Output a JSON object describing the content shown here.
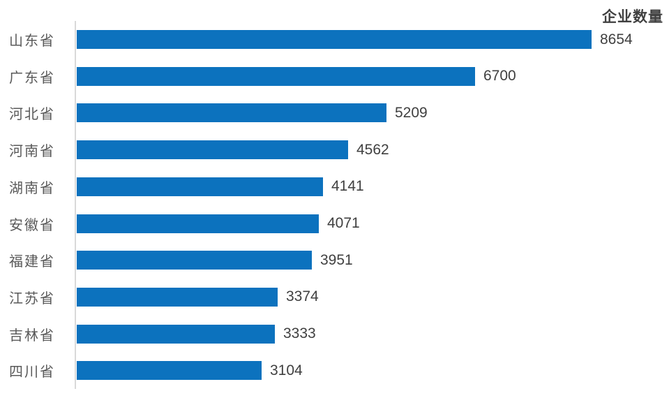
{
  "chart_data": {
    "type": "bar",
    "orientation": "horizontal",
    "title": "企业数量",
    "legend_position": "top-right",
    "categories": [
      "山东省",
      "广东省",
      "河北省",
      "河南省",
      "湖南省",
      "安徽省",
      "福建省",
      "江苏省",
      "吉林省",
      "四川省"
    ],
    "values": [
      8654,
      6700,
      5209,
      4562,
      4141,
      4071,
      3951,
      3374,
      3333,
      3104
    ],
    "value_labels_shown": true,
    "gridlines": false,
    "xlim": [
      0,
      8654
    ],
    "colors": {
      "bar": "#0c72be",
      "axis_line": "#d9d9d9",
      "category_label": "#595959",
      "value_label": "#404040",
      "title": "#404040",
      "background": "#ffffff"
    }
  }
}
